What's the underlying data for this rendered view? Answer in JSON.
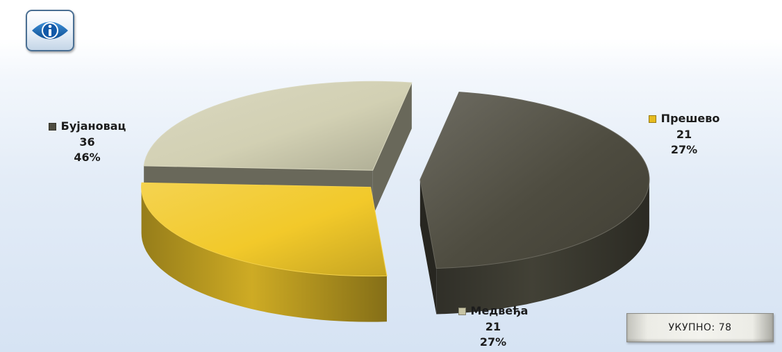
{
  "toolbar": {
    "info_icon": "info-icon"
  },
  "chart_data": {
    "type": "pie",
    "title": "",
    "categories": [
      "Бујановац",
      "Прешево",
      "Медвеђа"
    ],
    "values": [
      36,
      21,
      21
    ],
    "value_labels": [
      "36",
      "21",
      "21"
    ],
    "percent_labels": [
      "46%",
      "27%",
      "27%"
    ],
    "colors": [
      "#4e4c40",
      "#f2c92a",
      "#d2d0b3"
    ],
    "legend_placement": "outside labels beside each slice"
  },
  "total": {
    "label": "УКУПНО: 78"
  }
}
